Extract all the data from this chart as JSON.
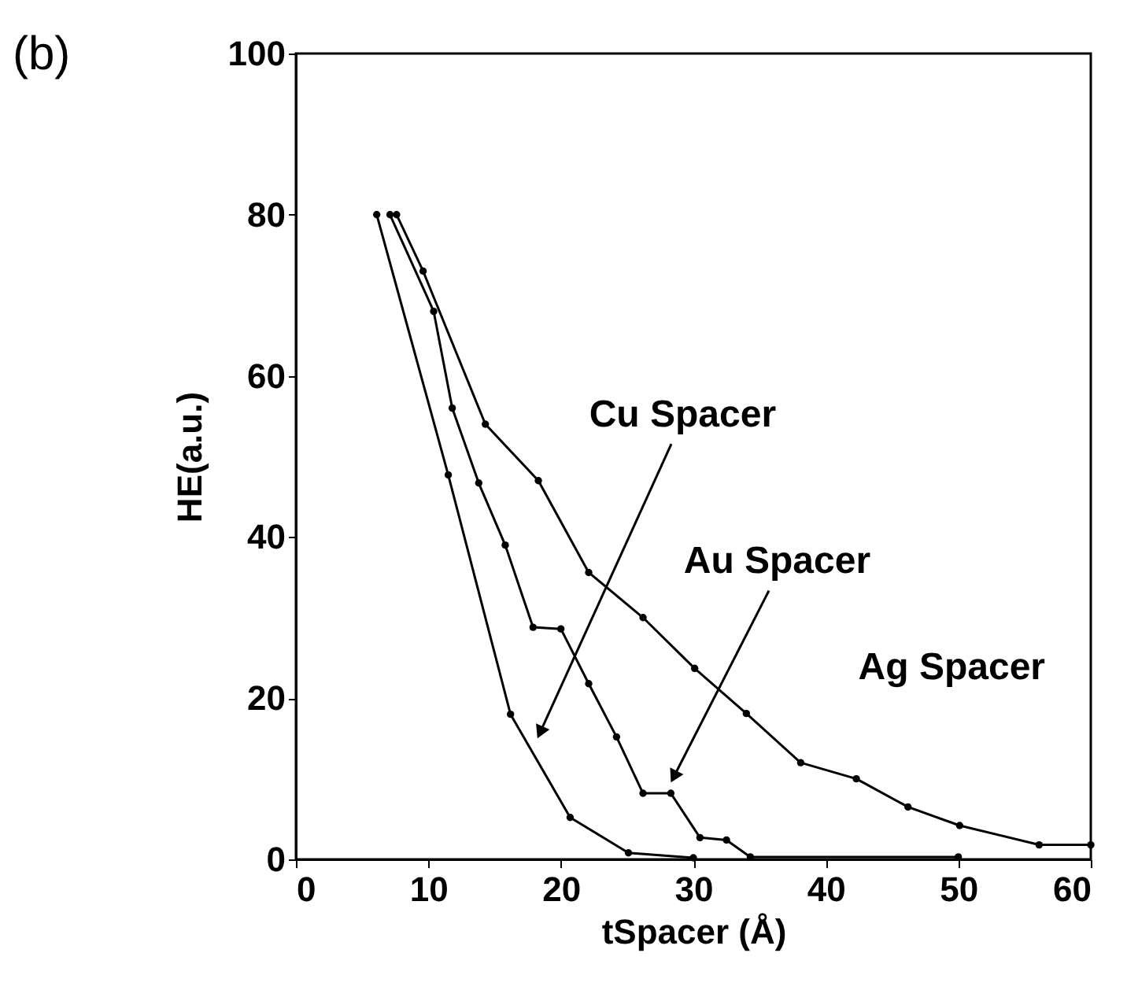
{
  "chart_data": {
    "type": "line",
    "xlabel": "tSpacer (Å)",
    "ylabel": "HE(a.u.)",
    "xlim": [
      0,
      60
    ],
    "ylim": [
      0,
      100
    ],
    "xticks": [
      0,
      10,
      20,
      30,
      40,
      50,
      60
    ],
    "yticks": [
      0,
      20,
      40,
      60,
      80,
      100
    ],
    "grid": false,
    "marker": "circle",
    "line_style": "solid",
    "series": [
      {
        "color": "#000000",
        "x": [
          6.1,
          11.5,
          16.2,
          20.7,
          25.1,
          30.0
        ],
        "values": [
          80,
          47.7,
          18,
          5.2,
          0.8,
          0.2
        ]
      },
      {
        "color": "#000000",
        "x": [
          7.1,
          10.4,
          11.8,
          13.8,
          15.8,
          17.9,
          20.0,
          22.1,
          24.2,
          26.2,
          28.3,
          30.5,
          32.5,
          34.3,
          50.0
        ],
        "values": [
          80,
          68,
          56,
          46.7,
          39,
          28.8,
          28.6,
          21.8,
          15.2,
          8.2,
          8.2,
          2.7,
          2.4,
          0.3,
          0.3
        ]
      },
      {
        "color": "#000000",
        "x": [
          7.6,
          9.6,
          14.3,
          18.3,
          22.1,
          26.2,
          30.1,
          34.0,
          38.1,
          42.3,
          46.2,
          50.1,
          56.1,
          60.0
        ],
        "values": [
          80,
          73,
          54,
          47,
          35.6,
          30,
          23.7,
          18.1,
          12,
          10,
          6.5,
          4.2,
          1.8,
          1.8
        ]
      }
    ],
    "annotations": [
      {
        "text": "Cu Spacer",
        "x": 18.5,
        "y": 16
      },
      {
        "text": "Au Spacer",
        "x": 28.6,
        "y": 10.5
      },
      {
        "text": "Ag Spacer",
        "x": 40,
        "y": 12
      },
      "(b)"
    ]
  }
}
